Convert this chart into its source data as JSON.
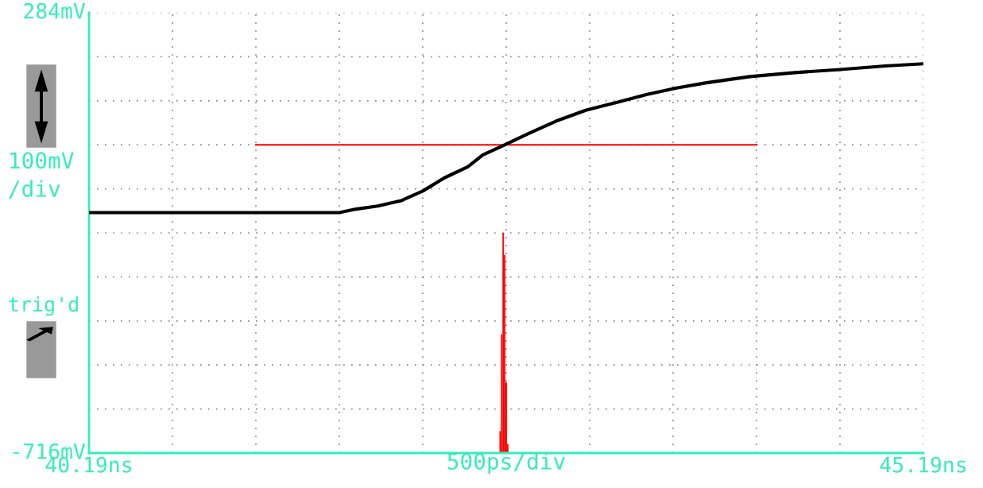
{
  "chart_data": {
    "type": "line",
    "xlabel": "500ps/div",
    "ylabel": "100mV\n/div",
    "annotations": [
      "trig'd"
    ],
    "xlim": [
      40.19,
      45.19
    ],
    "ylim": [
      -716,
      284
    ],
    "xticks": [
      {
        "value": 40.19,
        "label": "40.19ns"
      },
      {
        "value": 40.69,
        "label": null
      },
      {
        "value": 41.19,
        "label": null
      },
      {
        "value": 41.69,
        "label": null
      },
      {
        "value": 42.19,
        "label": null
      },
      {
        "value": 42.69,
        "label": null
      },
      {
        "value": 43.19,
        "label": null
      },
      {
        "value": 43.69,
        "label": null
      },
      {
        "value": 44.19,
        "label": null
      },
      {
        "value": 44.69,
        "label": null
      },
      {
        "value": 45.19,
        "label": "45.19ns"
      }
    ],
    "yticks": [
      {
        "value": -716,
        "label": "-716mV"
      },
      {
        "value": -616,
        "label": null
      },
      {
        "value": -516,
        "label": null
      },
      {
        "value": -416,
        "label": null
      },
      {
        "value": -316,
        "label": null
      },
      {
        "value": -216,
        "label": null
      },
      {
        "value": -116,
        "label": null
      },
      {
        "value": -16,
        "label": null
      },
      {
        "value": 84,
        "label": null
      },
      {
        "value": 184,
        "label": null
      },
      {
        "value": 284,
        "label": "284mV"
      }
    ],
    "grid": true,
    "line_style": "solid",
    "marker": "none",
    "legend": false,
    "series": [
      {
        "type": "bar",
        "color": "#ff0000",
        "x": [
          42.654,
          42.663,
          42.672,
          42.681,
          42.69,
          42.699
        ],
        "base": [
          -716,
          -716,
          -716,
          -716,
          -716,
          -716
        ],
        "values": [
          50,
          270,
          500,
          450,
          160,
          20
        ]
      },
      {
        "type": "line",
        "color": "#ff0000",
        "x": [
          41.19,
          44.19
        ],
        "values": [
          -16,
          -16
        ]
      },
      {
        "color": "#000000",
        "x": [
          40.19,
          41.69,
          41.79,
          41.92,
          42.06,
          42.19,
          42.32,
          42.46,
          42.55,
          42.67,
          42.82,
          42.99,
          43.17,
          43.35,
          43.53,
          43.71,
          43.89,
          44.15,
          44.42,
          44.69,
          44.96,
          45.19
        ],
        "values": [
          -170,
          -170,
          -162,
          -155,
          -143,
          -121,
          -91,
          -66,
          -39,
          -18,
          9,
          38,
          63,
          80,
          98,
          113,
          125,
          139,
          148,
          155,
          163,
          168
        ]
      }
    ]
  }
}
